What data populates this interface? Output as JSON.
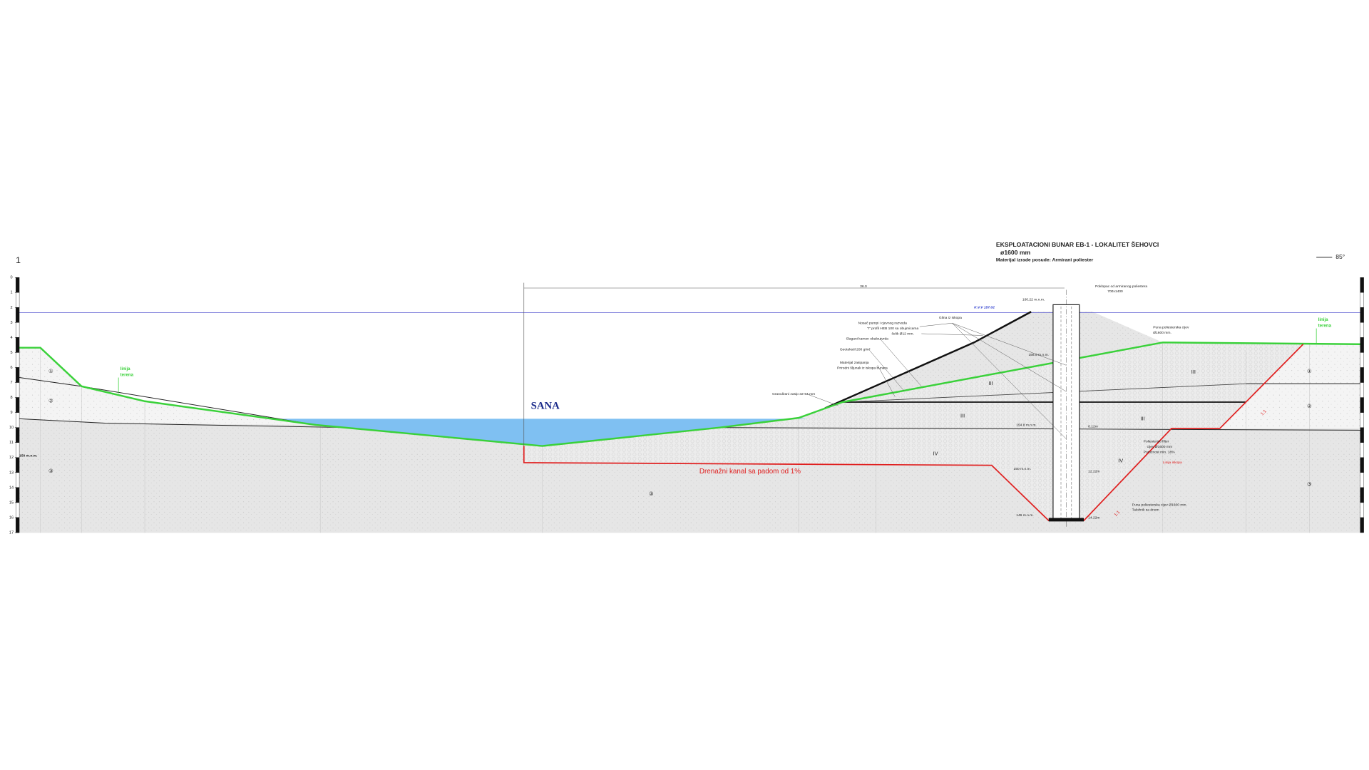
{
  "sheet_number": "1",
  "title": [
    "EKSPLOATACIONI BUNAR EB-1 - LOKALITET ŠEHOVCI",
    "ø1600 mm",
    "Materijal izrade posude: Armirani poliester"
  ],
  "north": "85°",
  "depth_scale": [
    0,
    1,
    2,
    3,
    4,
    5,
    6,
    7,
    8,
    9,
    10,
    11,
    12,
    13,
    14,
    15,
    16,
    17
  ],
  "dimension": "36.0",
  "water_level": "K.V.V 157.02",
  "river": "SANA",
  "drain": "Drenažni kanal sa padom od 1%",
  "terrain_left": [
    "linija",
    "terena"
  ],
  "terrain_right": [
    "linija",
    "terena"
  ],
  "elevation_left": "150 m.n.m.",
  "layers": [
    "①",
    "②",
    "③",
    "③",
    "③",
    "①",
    "②",
    "III",
    "III",
    "III",
    "III",
    "IV",
    "IV"
  ],
  "slopes": [
    "1:1",
    "1:1"
  ],
  "annotations": [
    "Poklopac od armiranog poliestera",
    "700x1400",
    "160.22 m.n.m.",
    "Glina iz iskopa",
    "Nosač pumpi i cjevnog razvoda",
    "\"I\" profil HEB 100 sa obujmicama",
    "čelik Ø12 mm.",
    "Slagani kamen obaloutvrda",
    "Geotekstil 200 g/m²",
    "Materijal zasipanja",
    "Prirodni šljunak iz iskopa bunara",
    "Granulirani zasip 32-64 mm",
    "Puna poliesterska cijev",
    "Ø1600 mm.",
    "156.5 m.n.m.",
    "154.8 m.n.m.",
    "8.12m",
    "Poliesterski filter",
    "cijev Ø1600 mm",
    "Poroznost min. 18%",
    "Linija iskopa",
    "150 m.n.m.",
    "12.22m",
    "Puna poliesterska cijev Ø1600 mm.",
    "Taložnik sa dnom",
    "146 m.n.m.",
    "14.22m"
  ]
}
